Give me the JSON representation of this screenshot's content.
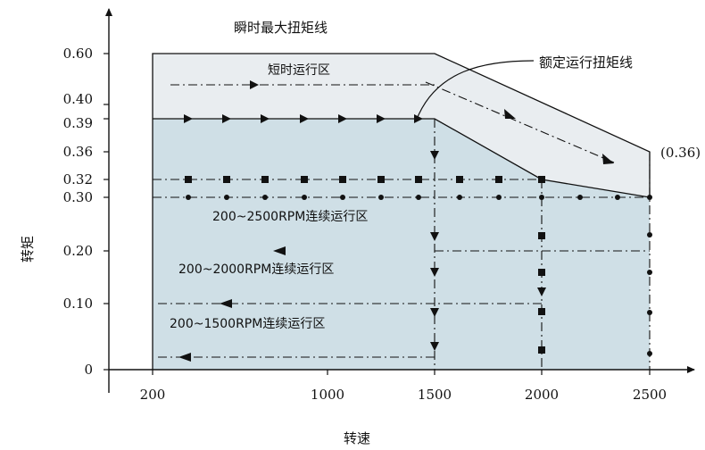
{
  "chart_data": {
    "type": "area",
    "xlabel": "转速",
    "ylabel": "转矩",
    "x_ticks": [
      "200",
      "1000",
      "1500",
      "2000",
      "2500"
    ],
    "y_ticks": [
      "0",
      "0.10",
      "0.20",
      "0.30",
      "0.32",
      "0.36",
      "0.39",
      "0.40",
      "0.60"
    ],
    "curves": {
      "peak_torque": {
        "label": "瞬时最大扭矩线",
        "points": [
          [
            200,
            0.6
          ],
          [
            1500,
            0.6
          ],
          [
            2500,
            0.36
          ]
        ]
      },
      "rated_torque": {
        "label": "额定运行扭矩线",
        "points": [
          [
            200,
            0.39
          ],
          [
            1500,
            0.39
          ],
          [
            2000,
            0.32
          ],
          [
            2500,
            0.3
          ]
        ]
      }
    },
    "regions": {
      "short_time": "短时运行区",
      "continuous_2500": "200~2500RPM连续运行区",
      "continuous_2000": "200~2000RPM连续运行区",
      "continuous_1500": "200~1500RPM连续运行区"
    },
    "annotation": "(0.36)",
    "colors": {
      "continuous_fill": "#cfdfe6",
      "short_time_fill": "#e9edf0",
      "line": "#111111"
    }
  }
}
